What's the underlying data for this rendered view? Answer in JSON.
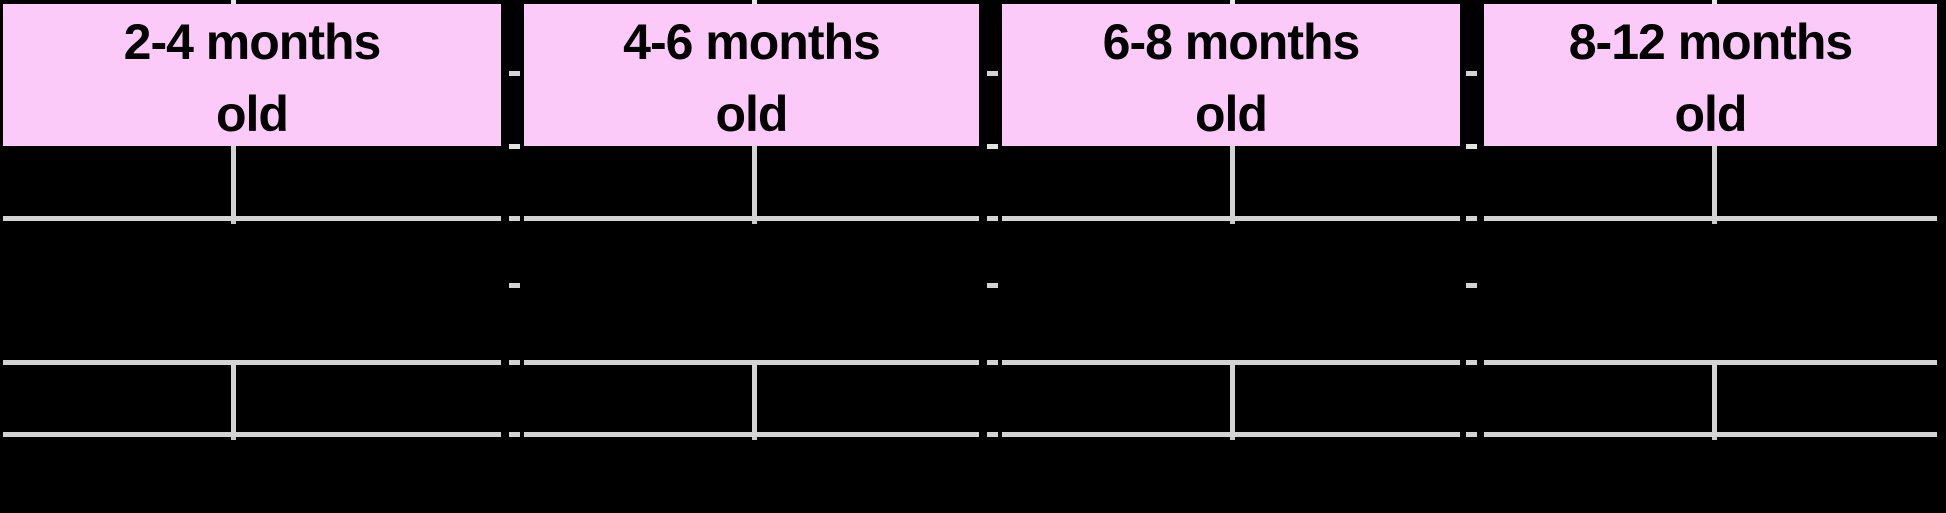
{
  "diagram": {
    "columns": [
      {
        "label_line1": "2-4 months",
        "label_line2": "old"
      },
      {
        "label_line1": "4-6 months",
        "label_line2": "old"
      },
      {
        "label_line1": "6-8 months",
        "label_line2": "old"
      },
      {
        "label_line1": "8-12 months",
        "label_line2": "old"
      }
    ],
    "colors": {
      "background": "#000000",
      "header_fill": "#FCCAF8",
      "header_text": "#000000",
      "line": "#D4D4D4",
      "tick": "#E8E8E8"
    }
  }
}
